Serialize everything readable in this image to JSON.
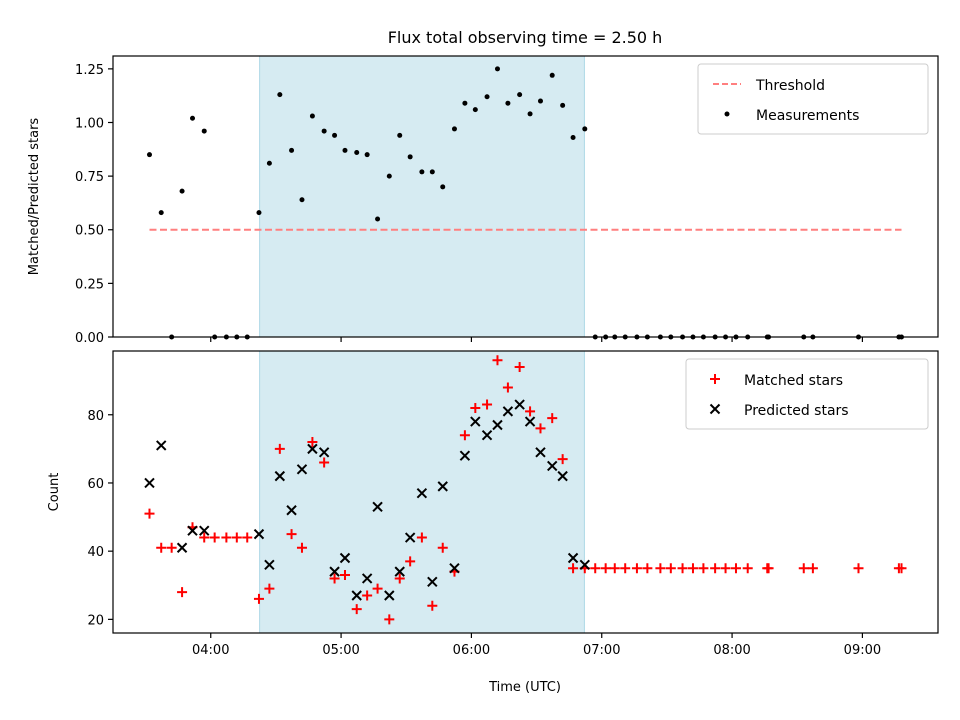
{
  "chart_data": {
    "title": "Flux total observing time = 2.50 h",
    "time_unit": "hours UTC",
    "observing_window": {
      "start": 4.375,
      "end": 6.867,
      "color": "#add8e6"
    },
    "xlabel": "Time (UTC)",
    "xlim": [
      3.25,
      9.58
    ],
    "xticks": [
      {
        "value": 4,
        "label": "04:00"
      },
      {
        "value": 5,
        "label": "05:00"
      },
      {
        "value": 6,
        "label": "06:00"
      },
      {
        "value": 7,
        "label": "07:00"
      },
      {
        "value": 8,
        "label": "08:00"
      },
      {
        "value": 9,
        "label": "09:00"
      }
    ],
    "panels": [
      {
        "type": "scatter",
        "ylabel": "Matched/Predicted stars",
        "ylim": [
          0,
          1.31
        ],
        "yticks": [
          "0.00",
          "0.25",
          "0.50",
          "0.75",
          "1.00",
          "1.25"
        ],
        "ytick_values": [
          0,
          0.25,
          0.5,
          0.75,
          1.0,
          1.25
        ],
        "show_xtick_labels": false,
        "legend_position": "top-right",
        "legend": [
          {
            "label": "Threshold",
            "marker": "dash",
            "color": "#ff7f7f"
          },
          {
            "label": "Measurements",
            "marker": "dot",
            "color": "#000000"
          }
        ],
        "threshold": {
          "value": 0.5,
          "x_start": 3.53,
          "x_end": 9.3,
          "color": "#ff7f7f"
        },
        "series": [
          {
            "marker": "dot",
            "color": "#000000",
            "x": [
              3.53,
              3.62,
              3.7,
              3.78,
              3.86,
              3.95,
              4.03,
              4.12,
              4.2,
              4.28,
              4.37,
              4.45,
              4.53,
              4.62,
              4.7,
              4.78,
              4.87,
              4.95,
              5.03,
              5.12,
              5.2,
              5.28,
              5.37,
              5.45,
              5.53,
              5.62,
              5.7,
              5.78,
              5.87,
              5.95,
              6.03,
              6.12,
              6.2,
              6.28,
              6.37,
              6.45,
              6.53,
              6.62,
              6.7,
              6.78,
              6.87,
              6.95,
              7.03,
              7.1,
              7.18,
              7.27,
              7.35,
              7.45,
              7.53,
              7.62,
              7.7,
              7.78,
              7.87,
              7.95,
              8.03,
              8.12,
              8.27,
              8.28,
              8.55,
              8.62,
              8.97,
              9.28,
              9.3
            ],
            "y": [
              0.85,
              0.58,
              0,
              0.68,
              1.02,
              0.96,
              0,
              0,
              0,
              0,
              0.58,
              0.81,
              1.13,
              0.87,
              0.64,
              1.03,
              0.96,
              0.94,
              0.87,
              0.86,
              0.85,
              0.55,
              0.75,
              0.94,
              0.84,
              0.77,
              0.77,
              0.7,
              0.97,
              1.09,
              1.06,
              1.12,
              1.25,
              1.09,
              1.13,
              1.04,
              1.1,
              1.22,
              1.08,
              0.93,
              0.97,
              0,
              0,
              0,
              0,
              0,
              0,
              0,
              0,
              0,
              0,
              0,
              0,
              0,
              0,
              0,
              0,
              0,
              0,
              0,
              0,
              0,
              0
            ]
          }
        ]
      },
      {
        "type": "scatter",
        "ylabel": "Count",
        "ylim": [
          16,
          98.7
        ],
        "yticks": [
          "20",
          "40",
          "60",
          "80"
        ],
        "ytick_values": [
          20,
          40,
          60,
          80
        ],
        "show_xtick_labels": true,
        "legend_position": "top-right",
        "legend": [
          {
            "label": "Matched stars",
            "marker": "plus",
            "color": "#ff0000"
          },
          {
            "label": "Predicted stars",
            "marker": "cross",
            "color": "#000000"
          }
        ],
        "series": [
          {
            "name": "Matched stars",
            "marker": "plus",
            "color": "#ff0000",
            "x": [
              3.53,
              3.62,
              3.7,
              3.78,
              3.86,
              3.95,
              4.03,
              4.12,
              4.2,
              4.28,
              4.37,
              4.45,
              4.53,
              4.62,
              4.7,
              4.78,
              4.87,
              4.95,
              5.03,
              5.12,
              5.2,
              5.28,
              5.37,
              5.45,
              5.53,
              5.62,
              5.7,
              5.78,
              5.87,
              5.95,
              6.03,
              6.12,
              6.2,
              6.28,
              6.37,
              6.45,
              6.53,
              6.62,
              6.7,
              6.78,
              6.87,
              6.95,
              7.03,
              7.1,
              7.18,
              7.27,
              7.35,
              7.45,
              7.53,
              7.62,
              7.7,
              7.78,
              7.87,
              7.95,
              8.03,
              8.12,
              8.27,
              8.28,
              8.55,
              8.62,
              8.97,
              9.28,
              9.3
            ],
            "y": [
              51,
              41,
              41,
              28,
              47,
              44,
              44,
              44,
              44,
              44,
              26,
              29,
              70,
              45,
              41,
              72,
              66,
              32,
              33,
              23,
              27,
              29,
              20,
              32,
              37,
              44,
              24,
              41,
              34,
              74,
              82,
              83,
              96,
              88,
              94,
              81,
              76,
              79,
              67,
              35,
              35,
              35,
              35,
              35,
              35,
              35,
              35,
              35,
              35,
              35,
              35,
              35,
              35,
              35,
              35,
              35,
              35,
              35,
              35,
              35,
              35,
              35,
              35
            ]
          },
          {
            "name": "Predicted stars",
            "marker": "cross",
            "color": "#000000",
            "x": [
              3.53,
              3.62,
              3.78,
              3.86,
              3.95,
              4.37,
              4.45,
              4.53,
              4.62,
              4.7,
              4.78,
              4.87,
              4.95,
              5.03,
              5.12,
              5.2,
              5.28,
              5.37,
              5.45,
              5.53,
              5.62,
              5.7,
              5.78,
              5.87,
              5.95,
              6.03,
              6.12,
              6.2,
              6.28,
              6.37,
              6.45,
              6.53,
              6.62,
              6.7,
              6.78,
              6.87
            ],
            "y": [
              60,
              71,
              41,
              46,
              46,
              45,
              36,
              62,
              52,
              64,
              70,
              69,
              34,
              38,
              27,
              32,
              53,
              27,
              34,
              44,
              57,
              31,
              59,
              35,
              68,
              78,
              74,
              77,
              81,
              83,
              78,
              69,
              65,
              62,
              38,
              36
            ]
          }
        ]
      }
    ]
  }
}
